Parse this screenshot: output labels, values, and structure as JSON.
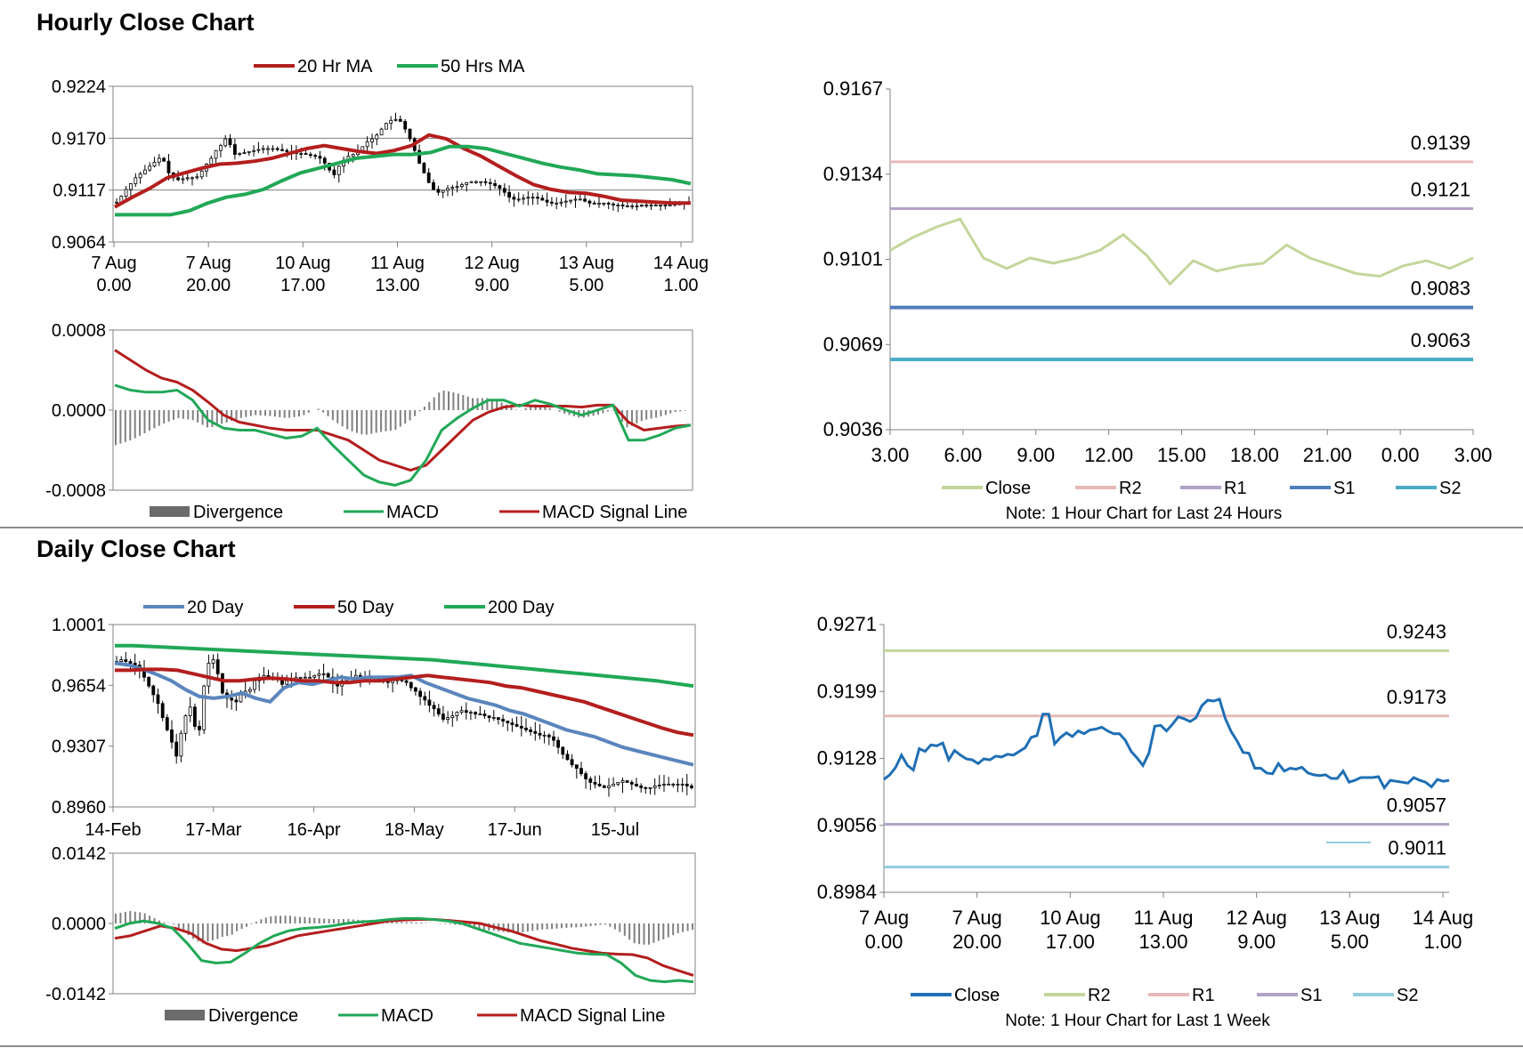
{
  "sections": {
    "hourly_title": "Hourly Close Chart",
    "daily_title": "Daily Close Chart"
  },
  "colors": {
    "ma_red": "#b41e1e",
    "ma_green": "#21a857",
    "ma_blue": "#5b85bd",
    "candle": "#000000",
    "divergence": "#808080",
    "close_light": "#c3d69b",
    "r2_pink": "#e6b9b8",
    "r1_lavender": "#b3a2c7",
    "s1_blue": "#4f7ebd",
    "s2_teal": "#4bacc6",
    "close_blue": "#1f6fb5",
    "r2_green": "#c3d69b",
    "r1_pink": "#e6b9b8",
    "s1_lavender": "#b3a2c7",
    "s2_lightblue": "#93cddd"
  },
  "chart_data": [
    {
      "id": "hourly_price",
      "type": "candlestick",
      "title": "Hourly Close Chart",
      "legend": [
        "20 Hr MA",
        "50 Hrs MA"
      ],
      "y_ticks": [
        "0.9224",
        "0.9170",
        "0.9117",
        "0.9064"
      ],
      "ylim": [
        0.9064,
        0.9224
      ],
      "x_ticks": [
        [
          "7 Aug",
          "0.00"
        ],
        [
          "7 Aug",
          "20.00"
        ],
        [
          "10 Aug",
          "17.00"
        ],
        [
          "11 Aug",
          "13.00"
        ],
        [
          "12 Aug",
          "9.00"
        ],
        [
          "13 Aug",
          "5.00"
        ],
        [
          "14 Aug",
          "1.00"
        ]
      ],
      "n_bars": 122,
      "close": [
        0.9105,
        0.9111,
        0.9118,
        0.9124,
        0.913,
        0.9134,
        0.9138,
        0.9142,
        0.9146,
        0.915,
        0.9147,
        0.9135,
        0.913,
        0.9128,
        0.9129,
        0.913,
        0.913,
        0.9131,
        0.9137,
        0.9144,
        0.915,
        0.9158,
        0.9163,
        0.917,
        0.9164,
        0.9154,
        0.9155,
        0.9156,
        0.9157,
        0.9158,
        0.9159,
        0.916,
        0.916,
        0.916,
        0.9159,
        0.9158,
        0.9157,
        0.9156,
        0.9155,
        0.9155,
        0.9154,
        0.9153,
        0.9152,
        0.915,
        0.9145,
        0.9138,
        0.9133,
        0.9142,
        0.9148,
        0.9152,
        0.9154,
        0.9157,
        0.9162,
        0.9167,
        0.917,
        0.9174,
        0.918,
        0.9186,
        0.9189,
        0.919,
        0.9188,
        0.918,
        0.917,
        0.9158,
        0.9145,
        0.9135,
        0.9125,
        0.9118,
        0.9115,
        0.9117,
        0.9119,
        0.912,
        0.9121,
        0.9123,
        0.9125,
        0.9126,
        0.9126,
        0.9126,
        0.9125,
        0.9124,
        0.9122,
        0.9119,
        0.9115,
        0.911,
        0.9108,
        0.9108,
        0.9109,
        0.911,
        0.911,
        0.9109,
        0.9107,
        0.9105,
        0.9104,
        0.9104,
        0.9105,
        0.9106,
        0.9107,
        0.9108,
        0.9108,
        0.9106,
        0.9104,
        0.9103,
        0.9104,
        0.9104,
        0.9103,
        0.9102,
        0.9102,
        0.9101,
        0.9101,
        0.9101,
        0.9101,
        0.9102,
        0.9101,
        0.9102,
        0.9102,
        0.9102,
        0.9102,
        0.9102,
        0.9103,
        0.9103,
        0.9104,
        0.9104
      ],
      "series": [
        {
          "name": "20 Hr MA",
          "values": [
            0.91,
            0.911,
            0.9119,
            0.913,
            0.9135,
            0.914,
            0.9144,
            0.9145,
            0.9147,
            0.915,
            0.9155,
            0.916,
            0.9163,
            0.916,
            0.9157,
            0.9155,
            0.9158,
            0.9163,
            0.9174,
            0.917,
            0.916,
            0.9152,
            0.9142,
            0.9132,
            0.9123,
            0.9118,
            0.9115,
            0.9114,
            0.9111,
            0.9107,
            0.9106,
            0.9105,
            0.9104,
            0.9104
          ]
        },
        {
          "name": "50 Hrs MA",
          "values": [
            0.9092,
            0.9092,
            0.9092,
            0.9092,
            0.9096,
            0.9104,
            0.911,
            0.9113,
            0.9118,
            0.9127,
            0.9135,
            0.914,
            0.9145,
            0.915,
            0.9152,
            0.9154,
            0.9154,
            0.9156,
            0.9162,
            0.9162,
            0.916,
            0.9155,
            0.915,
            0.9145,
            0.9141,
            0.9138,
            0.9134,
            0.9133,
            0.9132,
            0.913,
            0.9128,
            0.9124
          ]
        }
      ]
    },
    {
      "id": "hourly_macd",
      "type": "macd",
      "legend": [
        "Divergence",
        "MACD",
        "MACD Signal Line"
      ],
      "y_ticks": [
        "0.0008",
        "0.0000",
        "-0.0008"
      ],
      "ylim": [
        -0.0008,
        0.0008
      ],
      "series": [
        {
          "name": "MACD",
          "values": [
            0.00025,
            0.0002,
            0.00018,
            0.00018,
            0.0002,
            0.0001,
            -0.0001,
            -0.00018,
            -0.0002,
            -0.0002,
            -0.00024,
            -0.00028,
            -0.00026,
            -0.00018,
            -0.00035,
            -0.0005,
            -0.00065,
            -0.00072,
            -0.00075,
            -0.0007,
            -0.0005,
            -0.0002,
            -8e-05,
            2e-05,
            0.0001,
            0.0001,
            4e-05,
            0.0001,
            6e-05,
            0.0,
            -5e-05,
            -0.0,
            5e-05,
            -0.0003,
            -0.0003,
            -0.00025,
            -0.00018,
            -0.00015
          ]
        },
        {
          "name": "MACD Signal Line",
          "values": [
            0.0006,
            0.0005,
            0.0004,
            0.00032,
            0.00028,
            0.0002,
            8e-05,
            -5e-05,
            -0.00012,
            -0.00015,
            -0.00018,
            -0.0002,
            -0.0002,
            -0.0002,
            -0.00025,
            -0.0003,
            -0.0004,
            -0.0005,
            -0.00055,
            -0.0006,
            -0.00055,
            -0.0004,
            -0.00025,
            -0.0001,
            -2e-05,
            3e-05,
            5e-05,
            4e-05,
            4e-05,
            4e-05,
            3e-05,
            5e-05,
            5e-05,
            -0.00012,
            -0.0002,
            -0.00018,
            -0.00016,
            -0.00015
          ]
        }
      ]
    },
    {
      "id": "hourly_24h",
      "type": "line",
      "legend": [
        "Close",
        "R2",
        "R1",
        "S1",
        "S2"
      ],
      "note": "Note: 1 Hour Chart for Last 24 Hours",
      "y_ticks": [
        "0.9167",
        "0.9134",
        "0.9101",
        "0.9069",
        "0.9036"
      ],
      "ylim": [
        0.9036,
        0.9167
      ],
      "x_ticks": [
        "3.00",
        "6.00",
        "9.00",
        "12.00",
        "15.00",
        "18.00",
        "21.00",
        "0.00",
        "3.00"
      ],
      "levels": {
        "R2": "0.9139",
        "R1": "0.9121",
        "S1": "0.9083",
        "S2": "0.9063"
      },
      "level_values": [
        0.9139,
        0.9121,
        0.9083,
        0.9063
      ],
      "close": [
        0.9105,
        0.911,
        0.9114,
        0.9117,
        0.9102,
        0.9098,
        0.9102,
        0.91,
        0.9102,
        0.9105,
        0.9111,
        0.9103,
        0.9092,
        0.9101,
        0.9097,
        0.9099,
        0.91,
        0.9107,
        0.9102,
        0.9099,
        0.9096,
        0.9095,
        0.9099,
        0.9101,
        0.9098,
        0.9102
      ]
    },
    {
      "id": "daily_price",
      "type": "candlestick",
      "title": "Daily Close Chart",
      "legend": [
        "20 Day",
        "50 Day",
        "200 Day"
      ],
      "y_ticks": [
        "1.0001",
        "0.9654",
        "0.9307",
        "0.8960"
      ],
      "ylim": [
        0.896,
        1.0001
      ],
      "x_ticks": [
        "14-Feb",
        "17-Mar",
        "16-Apr",
        "18-May",
        "17-Jun",
        "15-Jul"
      ],
      "n_bars": 126,
      "close": [
        0.979,
        0.98,
        0.979,
        0.978,
        0.977,
        0.975,
        0.97,
        0.965,
        0.96,
        0.955,
        0.947,
        0.94,
        0.933,
        0.925,
        0.938,
        0.948,
        0.953,
        0.942,
        0.94,
        0.965,
        0.978,
        0.98,
        0.972,
        0.961,
        0.958,
        0.957,
        0.956,
        0.96,
        0.962,
        0.963,
        0.968,
        0.97,
        0.971,
        0.97,
        0.969,
        0.97,
        0.966,
        0.968,
        0.969,
        0.97,
        0.97,
        0.97,
        0.97,
        0.971,
        0.972,
        0.972,
        0.97,
        0.967,
        0.965,
        0.968,
        0.969,
        0.97,
        0.971,
        0.97,
        0.97,
        0.97,
        0.97,
        0.969,
        0.968,
        0.967,
        0.968,
        0.969,
        0.968,
        0.967,
        0.964,
        0.962,
        0.959,
        0.957,
        0.954,
        0.952,
        0.949,
        0.946,
        0.947,
        0.948,
        0.95,
        0.951,
        0.95,
        0.95,
        0.949,
        0.949,
        0.948,
        0.947,
        0.947,
        0.946,
        0.945,
        0.944,
        0.943,
        0.942,
        0.941,
        0.94,
        0.939,
        0.938,
        0.937,
        0.937,
        0.936,
        0.934,
        0.93,
        0.926,
        0.923,
        0.92,
        0.918,
        0.915,
        0.912,
        0.91,
        0.909,
        0.908,
        0.907,
        0.908,
        0.909,
        0.91,
        0.911,
        0.91,
        0.909,
        0.908,
        0.907,
        0.9065,
        0.907,
        0.908,
        0.9085,
        0.909,
        0.909,
        0.909,
        0.909,
        0.909,
        0.908,
        0.907
      ],
      "series": [
        {
          "name": "20 Day",
          "values": [
            0.978,
            0.977,
            0.9745,
            0.9715,
            0.968,
            0.963,
            0.959,
            0.958,
            0.959,
            0.961,
            0.958,
            0.956,
            0.964,
            0.967,
            0.966,
            0.968,
            0.97,
            0.969,
            0.97,
            0.97,
            0.97,
            0.971,
            0.967,
            0.964,
            0.961,
            0.958,
            0.956,
            0.954,
            0.951,
            0.949,
            0.946,
            0.943,
            0.94,
            0.938,
            0.936,
            0.933,
            0.93,
            0.928,
            0.926,
            0.924,
            0.922,
            0.92
          ]
        },
        {
          "name": "50 Day",
          "values": [
            0.974,
            0.974,
            0.9745,
            0.9745,
            0.974,
            0.972,
            0.97,
            0.968,
            0.968,
            0.969,
            0.9695,
            0.969,
            0.968,
            0.968,
            0.967,
            0.967,
            0.968,
            0.968,
            0.969,
            0.97,
            0.971,
            0.97,
            0.969,
            0.968,
            0.967,
            0.965,
            0.964,
            0.962,
            0.96,
            0.958,
            0.956,
            0.953,
            0.95,
            0.947,
            0.944,
            0.941,
            0.9385,
            0.937
          ]
        },
        {
          "name": "200 Day",
          "values": [
            0.988,
            0.988,
            0.9875,
            0.987,
            0.9865,
            0.986,
            0.9855,
            0.985,
            0.9845,
            0.984,
            0.9835,
            0.983,
            0.9825,
            0.982,
            0.9815,
            0.981,
            0.9805,
            0.98,
            0.979,
            0.978,
            0.977,
            0.976,
            0.975,
            0.974,
            0.973,
            0.972,
            0.971,
            0.97,
            0.969,
            0.968,
            0.9665,
            0.965
          ]
        }
      ]
    },
    {
      "id": "daily_macd",
      "type": "macd",
      "legend": [
        "Divergence",
        "MACD",
        "MACD Signal Line"
      ],
      "y_ticks": [
        "0.0142",
        "0.0000",
        "-0.0142"
      ],
      "ylim": [
        -0.0142,
        0.0142
      ],
      "series": [
        {
          "name": "MACD",
          "values": [
            -0.001,
            0.0,
            0.0005,
            0.0,
            -0.001,
            -0.004,
            -0.0075,
            -0.008,
            -0.0078,
            -0.006,
            -0.004,
            -0.0025,
            -0.0015,
            -0.001,
            -0.0008,
            -0.0005,
            0.0,
            0.0003,
            0.0005,
            0.0008,
            0.001,
            0.001,
            0.0008,
            0.0005,
            0.0,
            -0.001,
            -0.002,
            -0.003,
            -0.004,
            -0.0045,
            -0.005,
            -0.0055,
            -0.006,
            -0.0062,
            -0.0063,
            -0.008,
            -0.0105,
            -0.0115,
            -0.0118,
            -0.0115,
            -0.0118
          ]
        },
        {
          "name": "MACD Signal Line",
          "values": [
            -0.003,
            -0.0025,
            -0.0015,
            -0.0005,
            -0.001,
            -0.002,
            -0.004,
            -0.0052,
            -0.0055,
            -0.005,
            -0.0045,
            -0.0035,
            -0.0025,
            -0.002,
            -0.0015,
            -0.001,
            -0.0005,
            0.0,
            0.0005,
            0.0007,
            0.0008,
            0.0008,
            0.0006,
            0.0003,
            0.0,
            -0.0008,
            -0.0015,
            -0.0025,
            -0.0035,
            -0.0042,
            -0.005,
            -0.0055,
            -0.006,
            -0.0062,
            -0.0063,
            -0.007,
            -0.0085,
            -0.0095,
            -0.0105
          ]
        }
      ]
    },
    {
      "id": "daily_week",
      "type": "line",
      "legend": [
        "Close",
        "R2",
        "R1",
        "S1",
        "S2"
      ],
      "note": "Note: 1 Hour Chart for Last 1 Week",
      "y_ticks": [
        "0.9271",
        "0.9199",
        "0.9128",
        "0.9056",
        "0.8984"
      ],
      "ylim": [
        0.8984,
        0.9271
      ],
      "x_ticks": [
        [
          "7 Aug",
          "0.00"
        ],
        [
          "7 Aug",
          "20.00"
        ],
        [
          "10 Aug",
          "17.00"
        ],
        [
          "11 Aug",
          "13.00"
        ],
        [
          "12 Aug",
          "9.00"
        ],
        [
          "13 Aug",
          "5.00"
        ],
        [
          "14 Aug",
          "1.00"
        ]
      ],
      "levels": {
        "R2": "0.9243",
        "R1": "0.9173",
        "S1": "0.9057",
        "S2": "0.9011"
      },
      "level_values": [
        0.9243,
        0.9173,
        0.9057,
        0.9011
      ],
      "close": [
        0.9105,
        0.911,
        0.9118,
        0.9131,
        0.912,
        0.9115,
        0.9138,
        0.9135,
        0.9142,
        0.9141,
        0.9144,
        0.9126,
        0.9136,
        0.9131,
        0.9127,
        0.9126,
        0.9122,
        0.9127,
        0.9126,
        0.913,
        0.9129,
        0.9132,
        0.9131,
        0.9135,
        0.9139,
        0.915,
        0.9152,
        0.9175,
        0.9175,
        0.9143,
        0.915,
        0.9155,
        0.9151,
        0.9157,
        0.9154,
        0.9158,
        0.9159,
        0.9161,
        0.9157,
        0.9154,
        0.9154,
        0.9147,
        0.9135,
        0.9128,
        0.912,
        0.9133,
        0.9162,
        0.9163,
        0.9157,
        0.9164,
        0.9172,
        0.917,
        0.9167,
        0.9171,
        0.9184,
        0.919,
        0.9189,
        0.9191,
        0.917,
        0.9156,
        0.9146,
        0.9134,
        0.9133,
        0.9117,
        0.9117,
        0.9112,
        0.9111,
        0.9122,
        0.9114,
        0.9117,
        0.9116,
        0.9118,
        0.9112,
        0.911,
        0.9109,
        0.911,
        0.9106,
        0.9106,
        0.9114,
        0.9102,
        0.9104,
        0.9107,
        0.9107,
        0.9107,
        0.9108,
        0.9096,
        0.9104,
        0.9103,
        0.9102,
        0.9101,
        0.9107,
        0.9104,
        0.9102,
        0.9097,
        0.9105,
        0.9103,
        0.9104
      ]
    }
  ]
}
